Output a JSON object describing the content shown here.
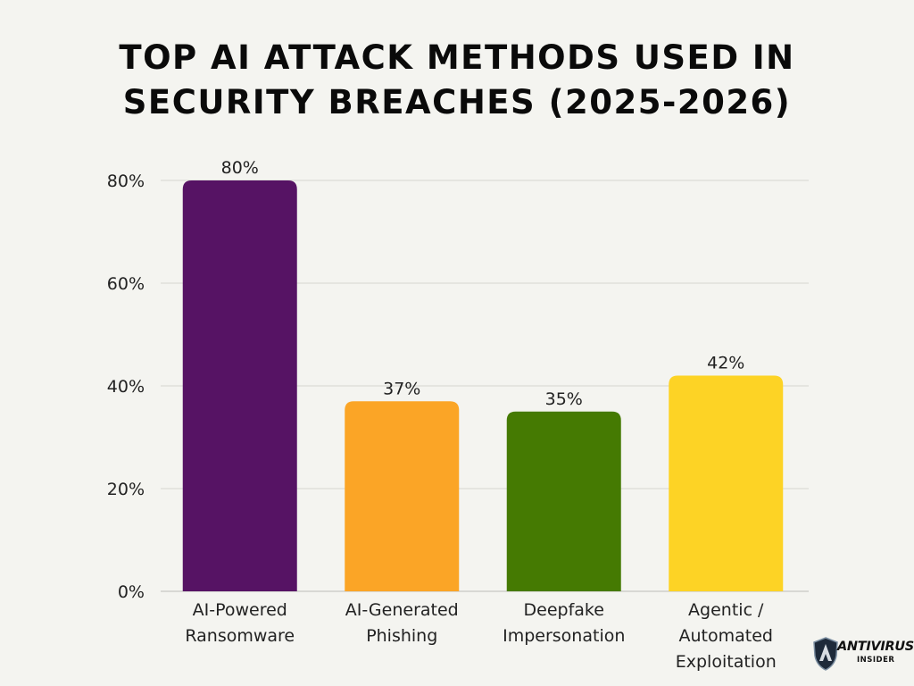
{
  "chart_data": {
    "type": "bar",
    "title_lines": [
      "TOP AI ATTACK METHODS USED IN",
      "SECURITY BREACHES (2025-2026)"
    ],
    "categories": [
      [
        "AI-Powered",
        "Ransomware"
      ],
      [
        "AI-Generated",
        "Phishing"
      ],
      [
        "Deepfake",
        "Impersonation"
      ],
      [
        "Agentic /",
        "Automated",
        "Exploitation"
      ]
    ],
    "values": [
      80,
      37,
      35,
      42
    ],
    "value_labels": [
      "80%",
      "37%",
      "35%",
      "42%"
    ],
    "bar_colors": [
      "#561364",
      "#fba526",
      "#457a02",
      "#fdd325"
    ],
    "y_ticks": [
      0,
      20,
      40,
      60,
      80
    ],
    "y_tick_labels": [
      "0%",
      "20%",
      "40%",
      "60%",
      "80%"
    ],
    "ylim": [
      0,
      80
    ],
    "grid": true,
    "xlabel": "",
    "ylabel": ""
  },
  "brand": {
    "line1": "ANTIVIRUS",
    "line2": "INSIDER",
    "icon": "shield-logo-icon"
  }
}
